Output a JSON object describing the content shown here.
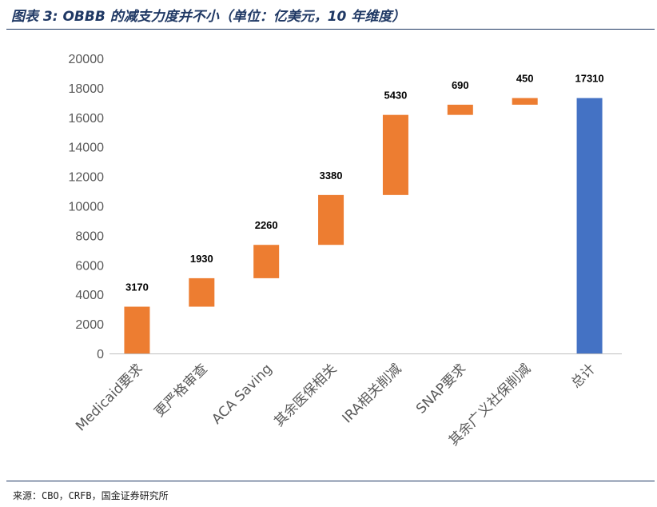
{
  "header": {
    "title": "图表 3: OBBB 的减支力度并不小（单位：亿美元，10 年维度）"
  },
  "footer": {
    "source": "来源：CBO，CRFB，国金证券研究所"
  },
  "colors": {
    "decrease": "#ED7D31",
    "total": "#4472C4",
    "title": "#1F3864",
    "axis_text": "#595959",
    "axis_line": "#BFBFBF"
  },
  "chart_data": {
    "type": "bar",
    "subtype": "waterfall",
    "categories": [
      "Medicaid要求",
      "更严格审查",
      "ACA Saving",
      "其余医保相关",
      "IRA相关削减",
      "SNAP要求",
      "其余广义社保削减",
      "总计"
    ],
    "values": [
      3170,
      1930,
      2260,
      3380,
      5430,
      690,
      450,
      17310
    ],
    "data_labels": [
      "3170",
      "1930",
      "2260",
      "3380",
      "5430",
      "690",
      "450",
      "17310"
    ],
    "is_total": [
      false,
      false,
      false,
      false,
      false,
      false,
      false,
      true
    ],
    "yticks": [
      "0",
      "2000",
      "4000",
      "6000",
      "8000",
      "10000",
      "12000",
      "14000",
      "16000",
      "18000",
      "20000"
    ],
    "ylim": [
      0,
      20000
    ],
    "grid": false,
    "legend": "none"
  }
}
